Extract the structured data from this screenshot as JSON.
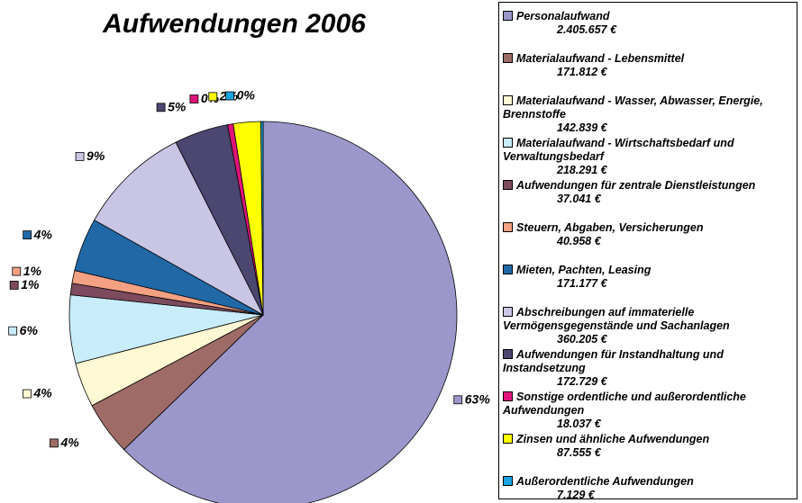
{
  "chart_data": {
    "type": "pie",
    "title": "Aufwendungen 2006",
    "categories": [
      "Personalaufwand",
      "Materialaufwand - Lebensmittel",
      "Materialaufwand - Wasser, Abwasser, Energie, Brennstoffe",
      "Materialaufwand - Wirtschaftsbedarf und Verwaltungsbedarf",
      "Aufwendungen für zentrale Dienstleistungen",
      "Steuern, Abgaben, Versicherungen",
      "Mieten, Pachten, Leasing",
      "Abschreibungen auf immaterielle Vermögensgegenstände und Sachanlagen",
      "Aufwendungen für Instandhaltung und Instandsetzung",
      "Sonstige ordentliche und außerordentliche Aufwendungen",
      "Zinsen und ähnliche Aufwendungen",
      "Außerordentliche Aufwendungen"
    ],
    "values": [
      2405657,
      171812,
      142839,
      218291,
      37041,
      40958,
      171177,
      360205,
      172729,
      18037,
      87555,
      7129
    ],
    "value_labels": [
      "2.405.657 €",
      "171.812 €",
      "142.839 €",
      "218.291 €",
      "37.041 €",
      "40.958 €",
      "171.177 €",
      "360.205 €",
      "172.729 €",
      "18.037 €",
      "87.555 €",
      "7.129 €"
    ],
    "percent_labels": [
      "63%",
      "4%",
      "4%",
      "6%",
      "1%",
      "1%",
      "4%",
      "9%",
      "5%",
      "0%",
      "2%",
      "0%"
    ],
    "colors": [
      "#9b97cb",
      "#9e6b66",
      "#fff8d4",
      "#c8ecfa",
      "#7d4a5e",
      "#f4a083",
      "#2068a6",
      "#c9c5e4",
      "#4b4770",
      "#e0147a",
      "#ffff00",
      "#1aa5e0"
    ],
    "legend": "right"
  }
}
